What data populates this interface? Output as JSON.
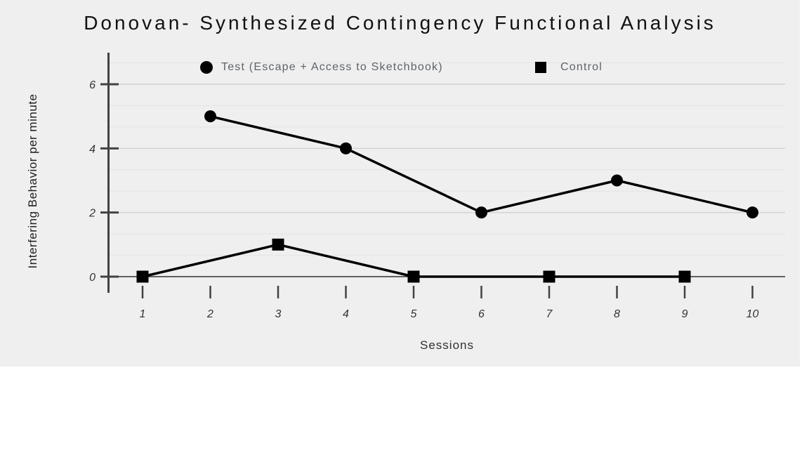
{
  "chart_data": {
    "type": "line",
    "title": "Donovan- Synthesized Contingency Functional Analysis",
    "xlabel": "Sessions",
    "ylabel": "Interfering Behavior per minute",
    "x_ticks": [
      1,
      2,
      3,
      4,
      5,
      6,
      7,
      8,
      9,
      10
    ],
    "y_ticks": [
      0,
      2,
      4,
      6
    ],
    "xlim": [
      1,
      10
    ],
    "ylim": [
      0,
      7
    ],
    "grid": {
      "major_values": [
        2,
        4,
        6
      ],
      "minor_step": 0.6666667,
      "minor_max": 6.6666667,
      "baseline_value": 0,
      "grid_on": true
    },
    "legend_position": "top",
    "series": [
      {
        "name": "Test (Escape + Access to Sketchbook)",
        "marker": "circle",
        "color": "#000000",
        "points": [
          {
            "x": 2,
            "y": 5
          },
          {
            "x": 4,
            "y": 4
          },
          {
            "x": 6,
            "y": 2
          },
          {
            "x": 8,
            "y": 3
          },
          {
            "x": 10,
            "y": 2
          }
        ]
      },
      {
        "name": "Control",
        "marker": "square",
        "color": "#000000",
        "points": [
          {
            "x": 1,
            "y": 0
          },
          {
            "x": 3,
            "y": 1
          },
          {
            "x": 5,
            "y": 0
          },
          {
            "x": 7,
            "y": 0
          },
          {
            "x": 9,
            "y": 0
          }
        ]
      }
    ],
    "colors": {
      "panel_background": "#efefef",
      "grid_major": "#d5d5d5",
      "grid_minor": "#e5e5e5",
      "baseline": "#303030",
      "axis": "#424242",
      "tick_text": "#333333",
      "title_text": "#111111",
      "legend_text": "#5f6368",
      "series": "#000000"
    }
  }
}
